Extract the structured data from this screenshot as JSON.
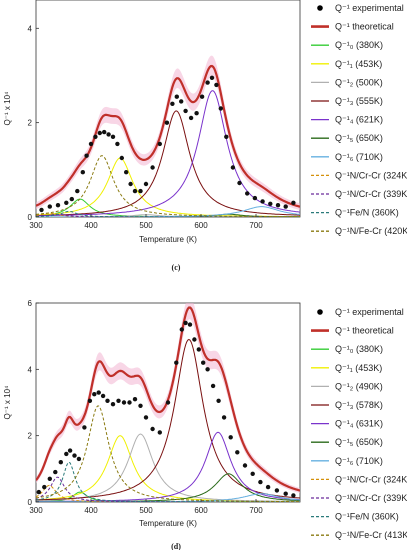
{
  "chart_data": [
    {
      "type": "line",
      "panel_label": "(c)",
      "xlabel": "Temperature (K)",
      "ylabel": "Q⁻¹ x 10⁴",
      "xlim": [
        300,
        780
      ],
      "ylim": [
        0,
        4.6
      ],
      "xticks": [
        300,
        400,
        500,
        600,
        700
      ],
      "yticks": [
        0,
        2,
        4
      ],
      "legend": [
        {
          "name": "Q⁻¹ experimental",
          "color": "#000000",
          "style": "marker"
        },
        {
          "name": "Q⁻¹ theoretical",
          "color": "#c0302a",
          "style": "thick"
        },
        {
          "name": "Q⁻¹₀ (380K)",
          "color": "#33cc33",
          "style": "solid"
        },
        {
          "name": "Q⁻¹₁ (453K)",
          "color": "#f0f000",
          "style": "solid"
        },
        {
          "name": "Q⁻¹₂ (500K)",
          "color": "#b0b0b0",
          "style": "solid"
        },
        {
          "name": "Q⁻¹₃ (555K)",
          "color": "#7a1010",
          "style": "solid"
        },
        {
          "name": "Q⁻¹₄ (621K)",
          "color": "#7a33cc",
          "style": "solid"
        },
        {
          "name": "Q⁻¹₅ (650K)",
          "color": "#2a6a1a",
          "style": "solid"
        },
        {
          "name": "Q⁻¹₆ (710K)",
          "color": "#66b0e0",
          "style": "solid"
        },
        {
          "name": "Q⁻¹N/Cr-Cr (324K)",
          "color": "#d4900a",
          "style": "dashed"
        },
        {
          "name": "Q⁻¹N/Cr-Cr (339K)",
          "color": "#6a2a9a",
          "style": "dashed"
        },
        {
          "name": "Q⁻¹Fe/N (360K)",
          "color": "#2a7a7a",
          "style": "dashed"
        },
        {
          "name": "Q⁻¹N/Fe-Cr (420K)",
          "color": "#8a7a10",
          "style": "dashed"
        }
      ],
      "components": [
        {
          "T": 380,
          "h": 0.38,
          "w": 22
        },
        {
          "T": 453,
          "h": 1.25,
          "w": 28
        },
        {
          "T": 500,
          "h": 0.05,
          "w": 28
        },
        {
          "T": 555,
          "h": 2.25,
          "w": 30
        },
        {
          "T": 621,
          "h": 2.68,
          "w": 32
        },
        {
          "T": 650,
          "h": 0.06,
          "w": 30
        },
        {
          "T": 710,
          "h": 0.22,
          "w": 40
        },
        {
          "T": 324,
          "h": 0.08,
          "w": 20
        },
        {
          "T": 339,
          "h": 0.06,
          "w": 18
        },
        {
          "T": 360,
          "h": 0.12,
          "w": 18
        },
        {
          "T": 420,
          "h": 1.3,
          "w": 26
        }
      ],
      "experimental": {
        "x": [
          310,
          325,
          340,
          355,
          365,
          375,
          385,
          392,
          400,
          408,
          416,
          424,
          432,
          440,
          448,
          456,
          464,
          472,
          480,
          490,
          500,
          512,
          525,
          538,
          548,
          556,
          564,
          572,
          582,
          592,
          602,
          612,
          620,
          628,
          636,
          646,
          658,
          670,
          684,
          698,
          712,
          726,
          740,
          754,
          768
        ],
        "y": [
          0.15,
          0.22,
          0.25,
          0.3,
          0.38,
          0.55,
          0.95,
          1.3,
          1.55,
          1.7,
          1.78,
          1.8,
          1.75,
          1.7,
          1.55,
          1.25,
          0.95,
          0.7,
          0.55,
          0.55,
          0.7,
          1.05,
          1.55,
          2.0,
          2.4,
          2.55,
          2.45,
          2.25,
          2.1,
          2.2,
          2.55,
          2.85,
          2.95,
          2.8,
          2.3,
          1.7,
          1.05,
          0.72,
          0.5,
          0.4,
          0.33,
          0.28,
          0.25,
          0.22,
          0.3
        ]
      }
    },
    {
      "type": "line",
      "panel_label": "(d)",
      "xlabel": "Temperature (K)",
      "ylabel": "Q⁻¹ x 10⁴",
      "xlim": [
        300,
        780
      ],
      "ylim": [
        0,
        6
      ],
      "xticks": [
        300,
        400,
        500,
        600,
        700
      ],
      "yticks": [
        0,
        2,
        4,
        6
      ],
      "legend": [
        {
          "name": "Q⁻¹ experimental",
          "color": "#000000",
          "style": "marker"
        },
        {
          "name": "Q⁻¹ theoretical",
          "color": "#c0302a",
          "style": "thick"
        },
        {
          "name": "Q⁻¹₀ (380K)",
          "color": "#33cc33",
          "style": "solid"
        },
        {
          "name": "Q⁻¹₁ (453K)",
          "color": "#f0f000",
          "style": "solid"
        },
        {
          "name": "Q⁻¹₂ (490K)",
          "color": "#b0b0b0",
          "style": "solid"
        },
        {
          "name": "Q⁻¹₃ (578K)",
          "color": "#7a1010",
          "style": "solid"
        },
        {
          "name": "Q⁻¹₄ (631K)",
          "color": "#7a33cc",
          "style": "solid"
        },
        {
          "name": "Q⁻¹₅ (650K)",
          "color": "#2a6a1a",
          "style": "solid"
        },
        {
          "name": "Q⁻¹₆ (710K)",
          "color": "#66b0e0",
          "style": "solid"
        },
        {
          "name": "Q⁻¹N/Cr-Cr (324K)",
          "color": "#d4900a",
          "style": "dashed"
        },
        {
          "name": "Q⁻¹N/Cr-Cr (339K)",
          "color": "#6a2a9a",
          "style": "dashed"
        },
        {
          "name": "Q⁻¹Fe/N (360K)",
          "color": "#2a7a7a",
          "style": "dashed"
        },
        {
          "name": "Q⁻¹N/Fe-Cr (413K)",
          "color": "#8a7a10",
          "style": "dashed"
        }
      ],
      "components": [
        {
          "T": 380,
          "h": 0.3,
          "w": 16
        },
        {
          "T": 453,
          "h": 2.0,
          "w": 28
        },
        {
          "T": 490,
          "h": 2.05,
          "w": 28
        },
        {
          "T": 578,
          "h": 4.9,
          "w": 32
        },
        {
          "T": 631,
          "h": 2.1,
          "w": 28
        },
        {
          "T": 650,
          "h": 0.85,
          "w": 30
        },
        {
          "T": 710,
          "h": 0.25,
          "w": 40
        },
        {
          "T": 324,
          "h": 0.5,
          "w": 16
        },
        {
          "T": 339,
          "h": 0.75,
          "w": 16
        },
        {
          "T": 360,
          "h": 1.2,
          "w": 14
        },
        {
          "T": 413,
          "h": 2.9,
          "w": 24
        }
      ],
      "experimental": {
        "x": [
          305,
          315,
          325,
          335,
          345,
          355,
          362,
          370,
          378,
          388,
          398,
          406,
          414,
          422,
          430,
          440,
          450,
          460,
          470,
          480,
          490,
          500,
          512,
          525,
          540,
          555,
          565,
          572,
          580,
          588,
          596,
          604,
          612,
          622,
          632,
          642,
          654,
          666,
          680,
          694,
          708,
          722,
          738,
          754,
          768
        ],
        "y": [
          0.3,
          0.45,
          0.7,
          0.9,
          1.2,
          1.45,
          1.55,
          1.4,
          1.3,
          2.25,
          3.05,
          3.25,
          3.3,
          3.2,
          3.05,
          2.95,
          3.05,
          3.0,
          3.0,
          3.1,
          2.9,
          2.55,
          2.2,
          2.1,
          3.0,
          4.2,
          5.2,
          5.4,
          5.35,
          4.9,
          4.6,
          4.2,
          4.0,
          3.5,
          3.05,
          2.55,
          1.95,
          1.5,
          1.1,
          0.85,
          0.6,
          0.45,
          0.35,
          0.25,
          0.2
        ]
      }
    }
  ]
}
